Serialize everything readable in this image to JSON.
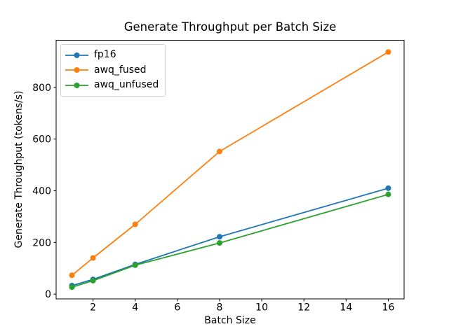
{
  "chart_data": {
    "type": "line",
    "title": "Generate Throughput per Batch Size",
    "xlabel": "Batch Size",
    "ylabel": "Generate Throughput (tokens/s)",
    "x": [
      1,
      2,
      4,
      8,
      16
    ],
    "series": [
      {
        "name": "fp16",
        "color": "#1f77b4",
        "marker": "circle",
        "values": [
          33,
          57,
          115,
          222,
          410
        ]
      },
      {
        "name": "awq_fused",
        "color": "#ff7f0e",
        "marker": "circle",
        "values": [
          73,
          140,
          270,
          552,
          937
        ]
      },
      {
        "name": "awq_unfused",
        "color": "#2ca02c",
        "marker": "circle",
        "values": [
          27,
          52,
          112,
          198,
          386
        ]
      }
    ],
    "xticks": [
      2,
      4,
      6,
      8,
      10,
      12,
      14,
      16
    ],
    "yticks": [
      0,
      200,
      400,
      600,
      800
    ],
    "xlim": [
      0.25,
      16.75
    ],
    "ylim": [
      -18.5,
      982.5
    ],
    "grid": false,
    "legend": {
      "position": "upper-left",
      "entries": [
        "fp16",
        "awq_fused",
        "awq_unfused"
      ]
    },
    "colors": {
      "spine": "#000000",
      "tick_label": "#000000",
      "background": "#ffffff"
    }
  }
}
